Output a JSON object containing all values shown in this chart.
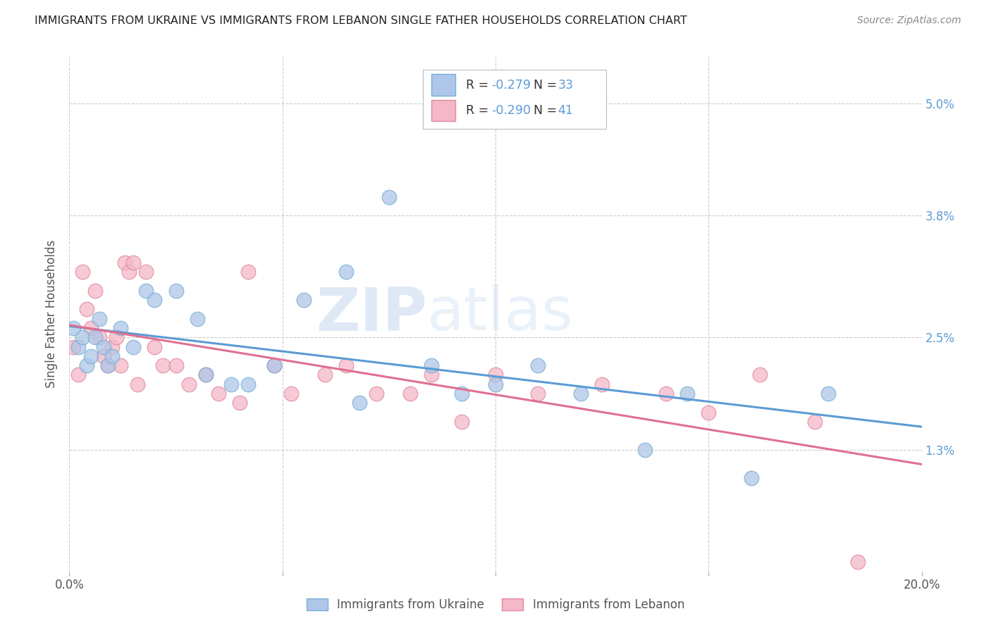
{
  "title": "IMMIGRANTS FROM UKRAINE VS IMMIGRANTS FROM LEBANON SINGLE FATHER HOUSEHOLDS CORRELATION CHART",
  "source": "Source: ZipAtlas.com",
  "ylabel": "Single Father Households",
  "xlim": [
    0.0,
    0.2
  ],
  "ylim": [
    0.0,
    0.055
  ],
  "yticks": [
    0.013,
    0.025,
    0.038,
    0.05
  ],
  "ytick_labels": [
    "1.3%",
    "2.5%",
    "3.8%",
    "5.0%"
  ],
  "xticks": [
    0.0,
    0.05,
    0.1,
    0.15,
    0.2
  ],
  "xtick_labels": [
    "0.0%",
    "",
    "",
    "",
    "20.0%"
  ],
  "ukraine_color": "#aec6e8",
  "ukraine_edge_color": "#7aafd4",
  "ukraine_line_color": "#5b9bd5",
  "lebanon_color": "#f4b8c8",
  "lebanon_edge_color": "#e08aa0",
  "lebanon_line_color": "#e07090",
  "R_ukraine": -0.279,
  "N_ukraine": 33,
  "R_lebanon": -0.29,
  "N_lebanon": 41,
  "ukraine_x": [
    0.001,
    0.002,
    0.003,
    0.004,
    0.005,
    0.006,
    0.007,
    0.008,
    0.009,
    0.01,
    0.012,
    0.015,
    0.018,
    0.02,
    0.025,
    0.03,
    0.032,
    0.038,
    0.042,
    0.048,
    0.055,
    0.065,
    0.068,
    0.075,
    0.085,
    0.092,
    0.1,
    0.11,
    0.12,
    0.135,
    0.145,
    0.16,
    0.178
  ],
  "ukraine_y": [
    0.026,
    0.024,
    0.025,
    0.022,
    0.023,
    0.025,
    0.027,
    0.024,
    0.022,
    0.023,
    0.026,
    0.024,
    0.03,
    0.029,
    0.03,
    0.027,
    0.021,
    0.02,
    0.02,
    0.022,
    0.029,
    0.032,
    0.018,
    0.04,
    0.022,
    0.019,
    0.02,
    0.022,
    0.019,
    0.013,
    0.019,
    0.01,
    0.019
  ],
  "lebanon_x": [
    0.001,
    0.002,
    0.003,
    0.004,
    0.005,
    0.006,
    0.007,
    0.008,
    0.009,
    0.01,
    0.011,
    0.012,
    0.013,
    0.014,
    0.015,
    0.016,
    0.018,
    0.02,
    0.022,
    0.025,
    0.028,
    0.032,
    0.035,
    0.04,
    0.042,
    0.048,
    0.052,
    0.06,
    0.065,
    0.072,
    0.08,
    0.085,
    0.092,
    0.1,
    0.11,
    0.125,
    0.14,
    0.15,
    0.162,
    0.175,
    0.185
  ],
  "lebanon_y": [
    0.024,
    0.021,
    0.032,
    0.028,
    0.026,
    0.03,
    0.025,
    0.023,
    0.022,
    0.024,
    0.025,
    0.022,
    0.033,
    0.032,
    0.033,
    0.02,
    0.032,
    0.024,
    0.022,
    0.022,
    0.02,
    0.021,
    0.019,
    0.018,
    0.032,
    0.022,
    0.019,
    0.021,
    0.022,
    0.019,
    0.019,
    0.021,
    0.016,
    0.021,
    0.019,
    0.02,
    0.019,
    0.017,
    0.021,
    0.016,
    0.001
  ],
  "watermark_zip": "ZIP",
  "watermark_atlas": "atlas",
  "background_color": "#ffffff",
  "grid_color": "#cccccc",
  "title_color": "#222222",
  "axis_label_color": "#555555",
  "source_color": "#888888",
  "right_tick_color": "#5b9bd5",
  "legend_text_dark": "#333333",
  "legend_R_color": "#5b9bd5",
  "legend_N_color": "#5b9bd5"
}
